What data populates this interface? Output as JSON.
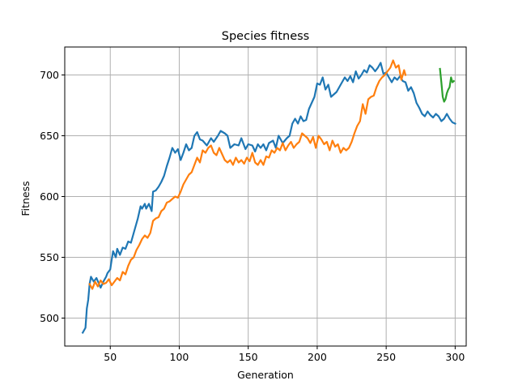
{
  "chart_data": {
    "type": "line",
    "title": "Species fitness",
    "xlabel": "Generation",
    "ylabel": "Fitness",
    "xlim": [
      17,
      308
    ],
    "ylim": [
      477,
      723
    ],
    "xticks": [
      50,
      100,
      150,
      200,
      250,
      300
    ],
    "yticks": [
      500,
      550,
      600,
      650,
      700
    ],
    "grid": true,
    "series": [
      {
        "color": "#1f77b4",
        "x": [
          30,
          32,
          33,
          34,
          35,
          36,
          38,
          40,
          43,
          45,
          47,
          48,
          50,
          51,
          52,
          54,
          55,
          57,
          59,
          61,
          63,
          65,
          67,
          69,
          70,
          72,
          73,
          75,
          76,
          78,
          80,
          81,
          83,
          85,
          87,
          89,
          91,
          93,
          95,
          97,
          99,
          101,
          103,
          105,
          107,
          109,
          111,
          113,
          115,
          117,
          120,
          123,
          125,
          128,
          130,
          133,
          135,
          137,
          140,
          143,
          145,
          148,
          150,
          153,
          155,
          157,
          159,
          161,
          163,
          165,
          168,
          170,
          172,
          175,
          178,
          180,
          182,
          184,
          186,
          188,
          190,
          192,
          194,
          196,
          198,
          200,
          202,
          204,
          206,
          208,
          210,
          212,
          214,
          216,
          218,
          220,
          222,
          224,
          226,
          228,
          230,
          232,
          234,
          236,
          238,
          240,
          242,
          244,
          246,
          248,
          250,
          252,
          254,
          256,
          258,
          260,
          262,
          264,
          266,
          268,
          270,
          272,
          274,
          276,
          278,
          280,
          282,
          284,
          286,
          288,
          290,
          292,
          294,
          296,
          298,
          300
        ],
        "y": [
          488,
          492,
          508,
          515,
          528,
          534,
          530,
          533,
          525,
          530,
          534,
          537,
          540,
          548,
          555,
          550,
          557,
          552,
          558,
          557,
          563,
          562,
          570,
          578,
          582,
          592,
          590,
          594,
          590,
          594,
          588,
          604,
          605,
          608,
          612,
          617,
          625,
          632,
          640,
          636,
          639,
          630,
          636,
          643,
          638,
          640,
          650,
          653,
          647,
          646,
          642,
          648,
          645,
          650,
          654,
          652,
          650,
          640,
          643,
          642,
          648,
          639,
          643,
          642,
          637,
          643,
          640,
          643,
          638,
          644,
          646,
          640,
          650,
          644,
          648,
          650,
          660,
          664,
          660,
          666,
          662,
          663,
          672,
          677,
          682,
          693,
          692,
          698,
          688,
          692,
          682,
          684,
          686,
          690,
          694,
          698,
          695,
          699,
          694,
          703,
          697,
          700,
          704,
          702,
          708,
          706,
          703,
          706,
          710,
          701,
          702,
          698,
          694,
          698,
          696,
          699,
          695,
          694,
          687,
          690,
          685,
          677,
          673,
          668,
          666,
          670,
          667,
          665,
          668,
          666,
          662,
          664,
          668,
          664,
          661,
          660
        ]
      },
      {
        "color": "#ff7f0e",
        "x": [
          35,
          37,
          39,
          41,
          43,
          45,
          47,
          49,
          51,
          53,
          55,
          57,
          59,
          61,
          63,
          65,
          67,
          69,
          71,
          73,
          75,
          77,
          79,
          81,
          83,
          85,
          87,
          89,
          91,
          93,
          95,
          97,
          99,
          101,
          103,
          105,
          107,
          109,
          111,
          113,
          115,
          117,
          119,
          121,
          123,
          125,
          127,
          129,
          131,
          133,
          135,
          137,
          139,
          141,
          143,
          145,
          147,
          149,
          151,
          153,
          155,
          157,
          159,
          161,
          163,
          165,
          167,
          169,
          171,
          173,
          175,
          177,
          179,
          181,
          183,
          185,
          187,
          189,
          191,
          193,
          195,
          197,
          199,
          201,
          203,
          205,
          207,
          209,
          211,
          213,
          215,
          217,
          219,
          221,
          223,
          225,
          227,
          229,
          231,
          233,
          235,
          237,
          239,
          241,
          243,
          245,
          247,
          249,
          251,
          253,
          255,
          257,
          259,
          261,
          263,
          264
        ],
        "y": [
          528,
          524,
          530,
          526,
          531,
          528,
          529,
          532,
          527,
          530,
          533,
          531,
          538,
          536,
          543,
          548,
          550,
          556,
          560,
          565,
          568,
          566,
          570,
          580,
          582,
          583,
          588,
          590,
          595,
          596,
          598,
          600,
          599,
          604,
          610,
          614,
          618,
          620,
          626,
          632,
          628,
          638,
          636,
          640,
          642,
          636,
          634,
          640,
          635,
          630,
          628,
          630,
          626,
          632,
          628,
          630,
          627,
          632,
          629,
          636,
          628,
          626,
          630,
          626,
          633,
          632,
          638,
          636,
          640,
          638,
          644,
          638,
          642,
          645,
          640,
          643,
          645,
          652,
          650,
          648,
          644,
          649,
          640,
          650,
          647,
          643,
          645,
          638,
          646,
          641,
          643,
          636,
          640,
          638,
          640,
          645,
          652,
          658,
          662,
          676,
          668,
          680,
          682,
          683,
          690,
          695,
          698,
          700,
          703,
          706,
          712,
          706,
          708,
          696,
          704,
          700
        ]
      },
      {
        "color": "#2ca02c",
        "x": [
          289,
          290,
          291,
          292,
          293,
          294,
          295,
          296,
          297,
          298,
          299
        ],
        "y": [
          705,
          694,
          682,
          678,
          680,
          685,
          688,
          690,
          698,
          694,
          695
        ]
      }
    ]
  }
}
